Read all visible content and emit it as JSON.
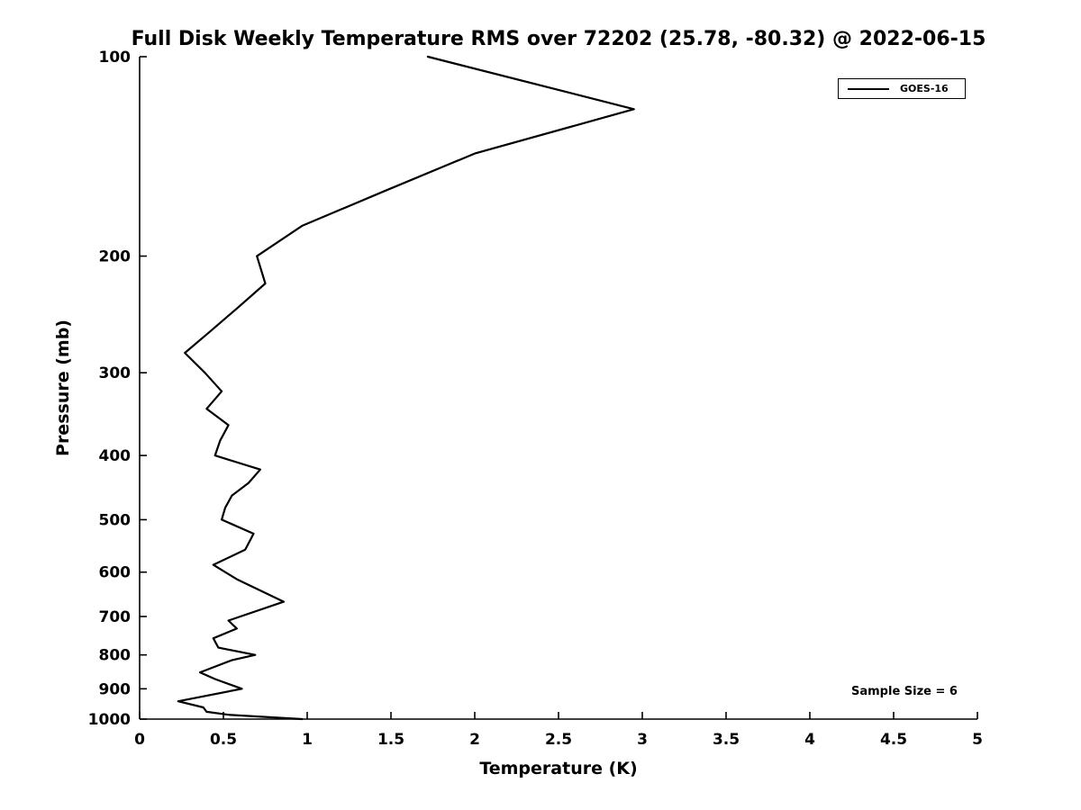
{
  "chart_data": {
    "type": "line",
    "title": "Full Disk Weekly Temperature RMS over 72202 (25.78, -80.32) @ 2022-06-15",
    "xlabel": "Temperature (K)",
    "ylabel": "Pressure (mb)",
    "xlim": [
      0,
      5
    ],
    "ylim": [
      100,
      1000
    ],
    "y_scale": "log",
    "y_inverted": true,
    "grid": false,
    "x_ticks": [
      0,
      0.5,
      1,
      1.5,
      2,
      2.5,
      3,
      3.5,
      4,
      4.5,
      5
    ],
    "x_tick_labels": [
      "0",
      "0.5",
      "1",
      "1.5",
      "2",
      "2.5",
      "3",
      "3.5",
      "4",
      "4.5",
      "5"
    ],
    "y_ticks": [
      100,
      200,
      300,
      400,
      500,
      600,
      700,
      800,
      900,
      1000
    ],
    "y_tick_labels": [
      "100",
      "200",
      "300",
      "400",
      "500",
      "600",
      "700",
      "800",
      "900",
      "1000"
    ],
    "legend": {
      "position": "top-right"
    },
    "annotation": "Sample Size = 6",
    "line_color": "#000000",
    "series": [
      {
        "name": "GOES-16",
        "color": "#000000",
        "points_format": "[pressure_mb, temperature_rms_K]",
        "points": [
          [
            100,
            1.72
          ],
          [
            120,
            2.95
          ],
          [
            140,
            2.0
          ],
          [
            160,
            1.45
          ],
          [
            180,
            0.97
          ],
          [
            200,
            0.7
          ],
          [
            220,
            0.75
          ],
          [
            240,
            0.58
          ],
          [
            260,
            0.42
          ],
          [
            280,
            0.27
          ],
          [
            300,
            0.39
          ],
          [
            320,
            0.49
          ],
          [
            340,
            0.4
          ],
          [
            360,
            0.53
          ],
          [
            380,
            0.48
          ],
          [
            400,
            0.45
          ],
          [
            420,
            0.72
          ],
          [
            440,
            0.65
          ],
          [
            460,
            0.55
          ],
          [
            480,
            0.51
          ],
          [
            500,
            0.49
          ],
          [
            525,
            0.68
          ],
          [
            555,
            0.63
          ],
          [
            585,
            0.44
          ],
          [
            615,
            0.58
          ],
          [
            665,
            0.86
          ],
          [
            710,
            0.53
          ],
          [
            730,
            0.58
          ],
          [
            755,
            0.44
          ],
          [
            780,
            0.47
          ],
          [
            800,
            0.69
          ],
          [
            815,
            0.55
          ],
          [
            850,
            0.36
          ],
          [
            870,
            0.45
          ],
          [
            900,
            0.61
          ],
          [
            940,
            0.23
          ],
          [
            960,
            0.38
          ],
          [
            975,
            0.4
          ],
          [
            985,
            0.53
          ],
          [
            1000,
            0.97
          ]
        ]
      }
    ]
  }
}
